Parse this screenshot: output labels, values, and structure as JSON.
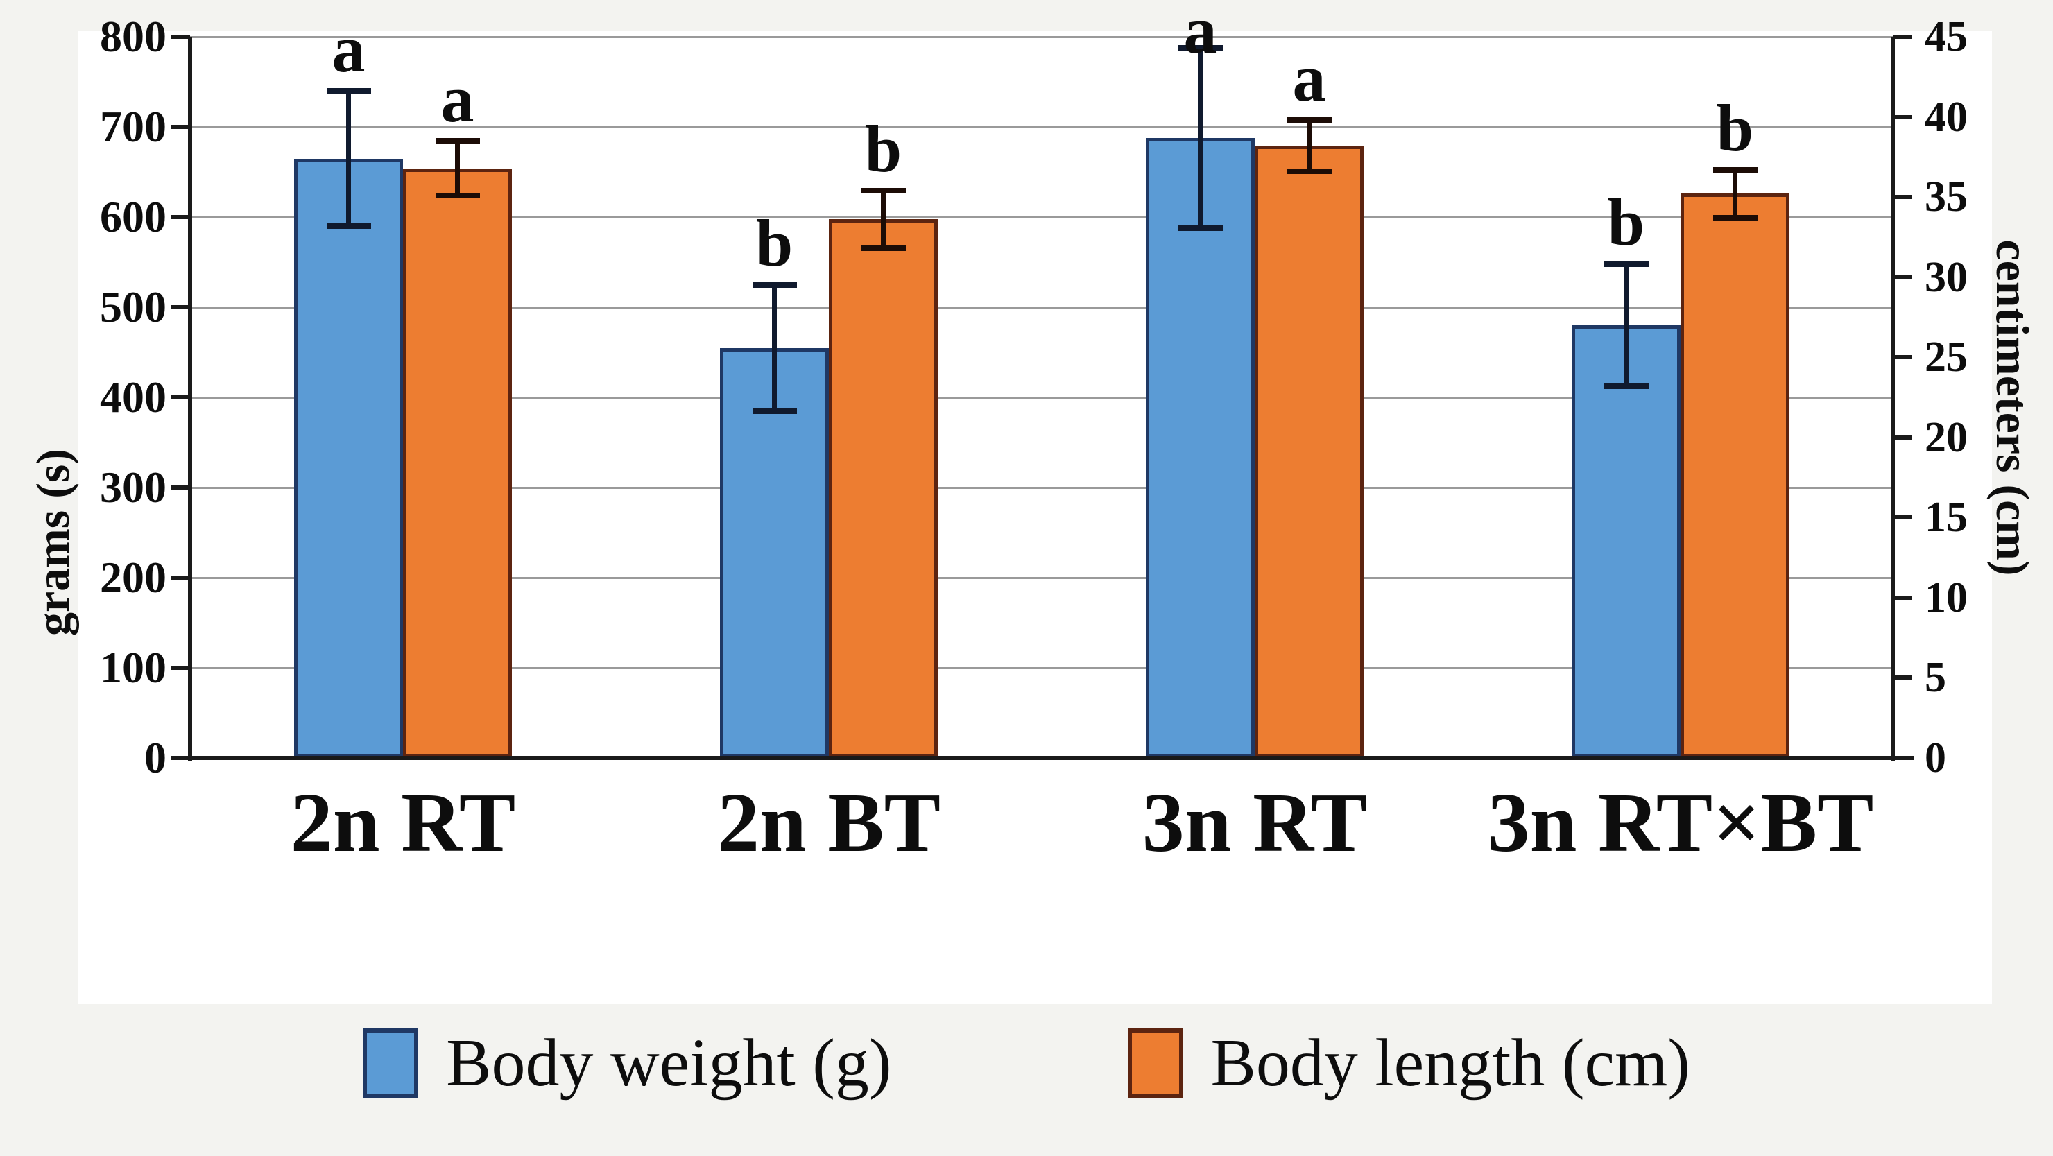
{
  "page": {
    "background": "#f3f3f0",
    "panel_background": "#ffffff"
  },
  "chart_data": {
    "type": "bar",
    "title": "",
    "categories": [
      "2n RT",
      "2n BT",
      "3n RT",
      "3n RT×BT"
    ],
    "axes": {
      "left": {
        "label": "grams (s)",
        "min": 0,
        "max": 800,
        "step": 100,
        "tick_labels": [
          "0",
          "100",
          "200",
          "300",
          "400",
          "500",
          "600",
          "700",
          "800"
        ]
      },
      "right": {
        "label": "centimeters (cm)",
        "min": 0,
        "max": 45,
        "step": 5,
        "tick_labels": [
          "0",
          "5",
          "10",
          "15",
          "20",
          "25",
          "30",
          "35",
          "40",
          "45"
        ]
      }
    },
    "grid": true,
    "legend_position": "bottom",
    "series": [
      {
        "name": "Body weight (g)",
        "axis": "left",
        "unit": "g",
        "fill": "#5B9BD5",
        "border": "#1F3864",
        "error_color": "#101A2E",
        "values": [
          665,
          455,
          688,
          480
        ],
        "errors": [
          75,
          70,
          100,
          68
        ],
        "sig_letters": [
          "a",
          "b",
          "a",
          "b"
        ]
      },
      {
        "name": "Body length (cm)",
        "axis": "right",
        "unit": "cm",
        "fill": "#ED7D31",
        "border": "#5C2410",
        "error_color": "#1C0C06",
        "values": [
          36.8,
          33.6,
          38.2,
          35.2
        ],
        "errors": [
          1.7,
          1.8,
          1.6,
          1.5
        ],
        "sig_letters": [
          "a",
          "b",
          "a",
          "b"
        ]
      }
    ],
    "gridline_color": "#9a9a9a",
    "axis_color": "#1a1a1a",
    "text_color": "#0d0d0d"
  }
}
